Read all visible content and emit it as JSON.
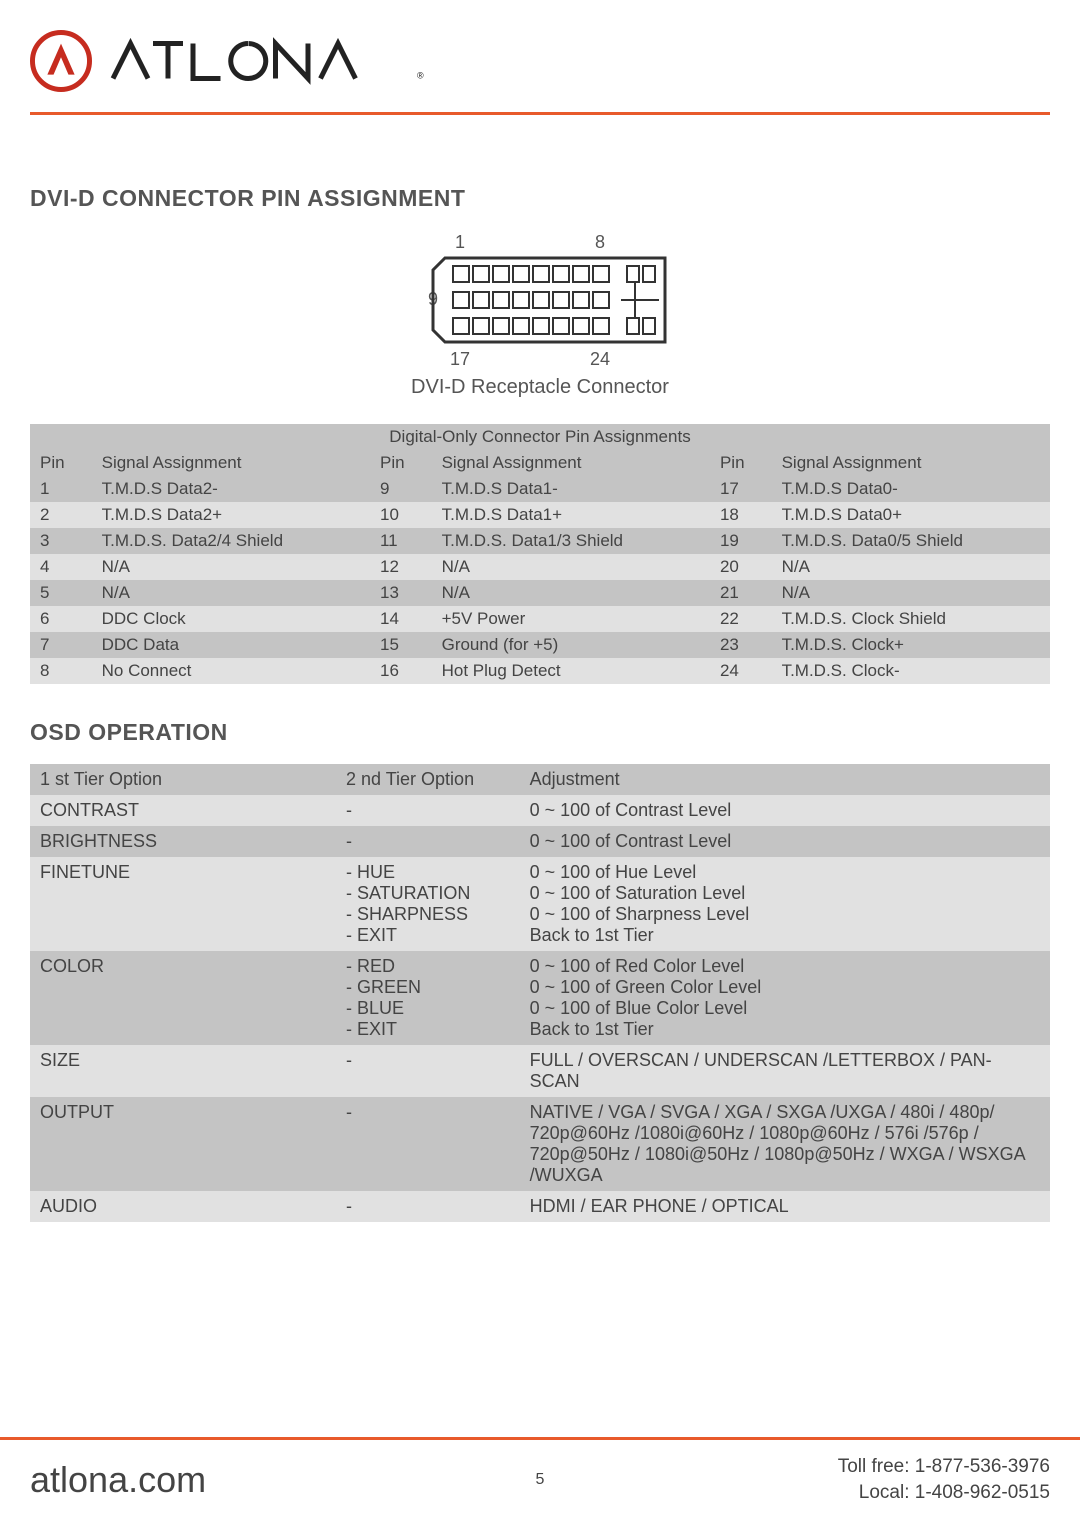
{
  "brand": {
    "name": "ATLONA",
    "registered_mark": "®",
    "accent_color": "#e85a2b"
  },
  "sections": {
    "pin_assignment": {
      "title": "DVI-D CONNECTOR PIN ASSIGNMENT",
      "diagram_caption": "DVI-D Receptacle Connector",
      "diagram_labels": {
        "tl": "1",
        "tr": "8",
        "ml": "9",
        "bl": "17",
        "br": "24"
      },
      "table_caption": "Digital-Only Connector Pin Assignments",
      "columns": [
        "Pin",
        "Signal Assignment",
        "Pin",
        "Signal Assignment",
        "Pin",
        "Signal Assignment"
      ],
      "rows": [
        [
          "1",
          "T.M.D.S Data2-",
          "9",
          "T.M.D.S Data1-",
          "17",
          "T.M.D.S Data0-"
        ],
        [
          "2",
          "T.M.D.S Data2+",
          "10",
          "T.M.D.S Data1+",
          "18",
          "T.M.D.S Data0+"
        ],
        [
          "3",
          "T.M.D.S. Data2/4 Shield",
          "11",
          "T.M.D.S. Data1/3 Shield",
          "19",
          "T.M.D.S. Data0/5 Shield"
        ],
        [
          "4",
          "N/A",
          "12",
          "N/A",
          "20",
          "N/A"
        ],
        [
          "5",
          "N/A",
          "13",
          "N/A",
          "21",
          "N/A"
        ],
        [
          "6",
          "DDC Clock",
          "14",
          "+5V Power",
          "22",
          "T.M.D.S. Clock Shield"
        ],
        [
          "7",
          "DDC Data",
          "15",
          "Ground (for +5)",
          "23",
          "T.M.D.S. Clock+"
        ],
        [
          "8",
          "No Connect",
          "16",
          "Hot Plug Detect",
          "24",
          "T.M.D.S. Clock-"
        ]
      ]
    },
    "osd": {
      "title": "OSD OPERATION",
      "columns": [
        "1 st Tier Option",
        "2 nd Tier Option",
        "Adjustment"
      ],
      "rows": [
        {
          "t1": "CONTRAST",
          "t2": "-",
          "adj": "0 ~ 100 of Contrast Level"
        },
        {
          "t1": "BRIGHTNESS",
          "t2": "-",
          "adj": "0 ~ 100 of Contrast Level"
        },
        {
          "t1": "FINETUNE",
          "t2": "- HUE\n- SATURATION\n- SHARPNESS\n- EXIT",
          "adj": "0 ~ 100 of Hue Level\n0 ~ 100 of Saturation Level\n0 ~ 100 of Sharpness Level\nBack to 1st Tier"
        },
        {
          "t1": "COLOR",
          "t2": "- RED\n- GREEN\n- BLUE\n- EXIT",
          "adj": "0 ~ 100 of Red Color Level\n0 ~ 100 of Green Color Level\n0 ~ 100 of Blue Color Level\nBack to 1st Tier"
        },
        {
          "t1": "SIZE",
          "t2": "-",
          "adj": "FULL / OVERSCAN / UNDERSCAN /LETTERBOX / PAN-SCAN"
        },
        {
          "t1": "OUTPUT",
          "t2": "-",
          "adj": "NATIVE / VGA / SVGA / XGA / SXGA /UXGA / 480i / 480p/ 720p@60Hz /1080i@60Hz / 1080p@60Hz / 576i /576p / 720p@50Hz / 1080i@50Hz / 1080p@50Hz / WXGA / WSXGA /WUXGA"
        },
        {
          "t1": "AUDIO",
          "t2": "-",
          "adj": "HDMI / EAR PHONE / OPTICAL"
        }
      ]
    }
  },
  "footer": {
    "website": "atlona.com",
    "page_number": "5",
    "toll_free": "Toll free: 1-877-536-3976",
    "local": "Local: 1-408-962-0515"
  }
}
